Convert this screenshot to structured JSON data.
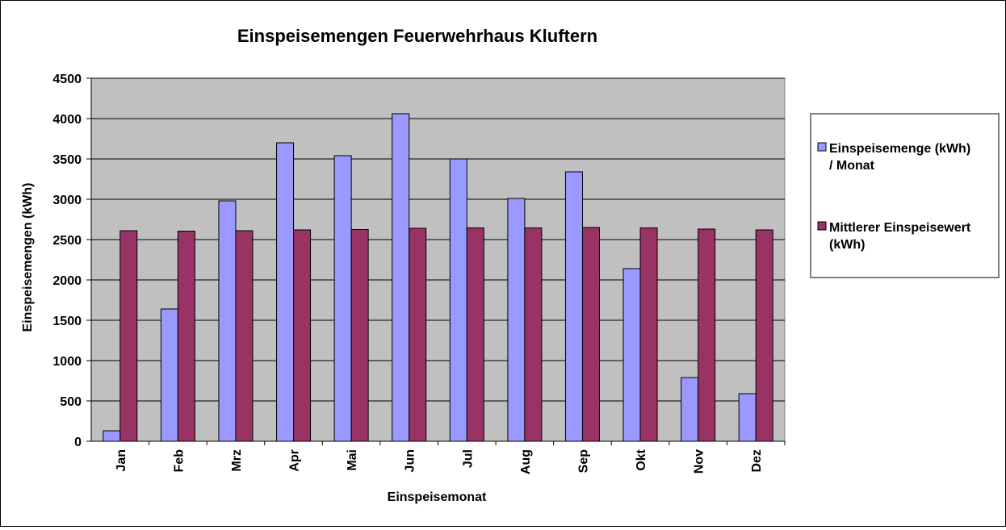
{
  "chart_data": {
    "type": "bar",
    "title": "Einspeisemengen Feuerwehrhaus Kluftern",
    "xlabel": "Einspeisemonat",
    "ylabel": "Einspeisemengen (kWh)",
    "categories": [
      "Jan",
      "Feb",
      "Mrz",
      "Apr",
      "Mai",
      "Jun",
      "Jul",
      "Aug",
      "Sep",
      "Okt",
      "Nov",
      "Dez"
    ],
    "ylim": [
      0,
      4500
    ],
    "yticks": [
      "0",
      "500",
      "1000",
      "1500",
      "2000",
      "2500",
      "3000",
      "3500",
      "4000",
      "4500"
    ],
    "grid": true,
    "legend_position": "right",
    "plot_background": "#c0c0c0",
    "series": [
      {
        "name": "Einspeisemenge (kWh) / Monat",
        "legend_lines": [
          "Einspeisemenge (kWh)",
          "/ Monat"
        ],
        "color": "#9999ff",
        "values": [
          130,
          1640,
          2980,
          3700,
          3540,
          4060,
          3500,
          3010,
          3340,
          2140,
          790,
          590
        ]
      },
      {
        "name": "Mittlerer Einspeisewert (kWh)",
        "legend_lines": [
          "Mittlerer Einspeisewert",
          "(kWh)"
        ],
        "color": "#993366",
        "values": [
          2610,
          2605,
          2610,
          2620,
          2625,
          2640,
          2645,
          2645,
          2650,
          2645,
          2630,
          2620
        ]
      }
    ]
  }
}
